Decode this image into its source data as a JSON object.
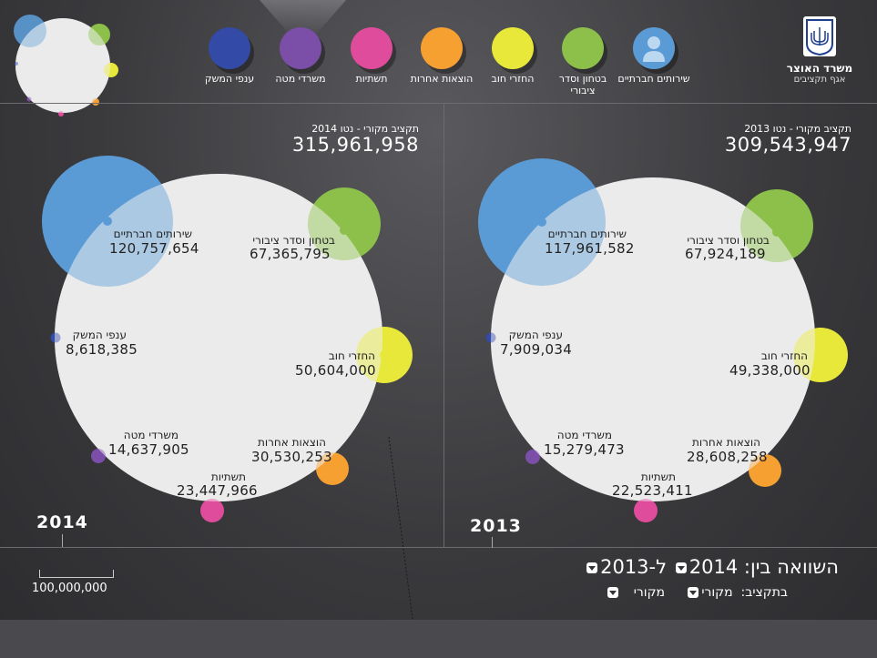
{
  "ministry": {
    "name": "משרד האוצר",
    "department": "אגף תקציבים"
  },
  "legend": [
    {
      "name": "שירותים חברתיים",
      "color": "#5b9bd5",
      "icon": "person-icon"
    },
    {
      "name": "בטחון וסדר ציבורי",
      "color": "#8dc04a"
    },
    {
      "name": "החזרי חוב",
      "color": "#e8e83a"
    },
    {
      "name": "הוצאות אחרות",
      "color": "#f5a030"
    },
    {
      "name": "תשתיות",
      "color": "#e04c9c"
    },
    {
      "name": "משרדי מטה",
      "color": "#7b4ea8"
    },
    {
      "name": "ענפי המשק",
      "color": "#334aa6"
    }
  ],
  "panels": {
    "p2014": {
      "year": "2014",
      "total_label": "תקציב מקורי - נטו 2014",
      "total_value": "315,961,958",
      "items": [
        {
          "name": "שירותים חברתיים",
          "value": "120,757,654"
        },
        {
          "name": "בטחון וסדר ציבורי",
          "value": "67,365,795"
        },
        {
          "name": "ענפי המשק",
          "value": "8,618,385"
        },
        {
          "name": "החזרי חוב",
          "value": "50,604,000"
        },
        {
          "name": "משרדי מטה",
          "value": "14,637,905"
        },
        {
          "name": "הוצאות אחרות",
          "value": "30,530,253"
        },
        {
          "name": "תשתיות",
          "value": "23,447,966"
        }
      ]
    },
    "p2013": {
      "year": "2013",
      "total_label": "תקציב מקורי - נטו 2013",
      "total_value": "309,543,947",
      "items": [
        {
          "name": "שירותים חברתיים",
          "value": "117,961,582"
        },
        {
          "name": "בטחון וסדר ציבורי",
          "value": "67,924,189"
        },
        {
          "name": "ענפי המשק",
          "value": "7,909,034"
        },
        {
          "name": "החזרי חוב",
          "value": "49,338,000"
        },
        {
          "name": "משרדי מטה",
          "value": "15,279,473"
        },
        {
          "name": "הוצאות אחרות",
          "value": "28,608,258"
        },
        {
          "name": "תשתיות",
          "value": "22,523,411"
        }
      ]
    }
  },
  "controls": {
    "compare_label": "השוואה בין:",
    "year_a": "2014",
    "connector": "ל-",
    "year_b": "2013",
    "budget_label": "בתקציב:",
    "budget_a": "מקורי",
    "budget_b": "מקורי"
  },
  "scale": {
    "label": "100,000,000"
  }
}
